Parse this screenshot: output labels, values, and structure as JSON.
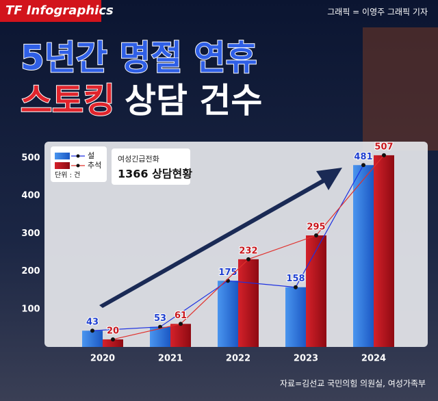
{
  "brand": "TF Infographics",
  "credit": "그래픽 = 이영주 그래픽 기자",
  "headline": {
    "line1": "5년간 명절 연휴",
    "line2_highlight": "스토킹",
    "line2_rest": "상담 건수"
  },
  "chart_data": {
    "type": "bar",
    "categories": [
      "2020",
      "2021",
      "2022",
      "2023",
      "2024"
    ],
    "series": [
      {
        "name": "설",
        "color": "#2a72dc",
        "line_color": "#1c2fe0",
        "label_color": "#1f3fd0",
        "values": [
          43,
          53,
          175,
          158,
          481
        ]
      },
      {
        "name": "추석",
        "color": "#b8111b",
        "line_color": "#e0302c",
        "label_color": "#c8161c",
        "values": [
          20,
          61,
          232,
          295,
          507
        ]
      }
    ],
    "unit": "단위 : 건",
    "note_small": "여성긴급전화",
    "note_big": "1366 상담현황",
    "ylim": [
      0,
      543
    ],
    "yticks": [
      100,
      200,
      300,
      400,
      500
    ],
    "grid": false,
    "source": "자료=김선교 국민의힘 의원실, 여성가족부"
  }
}
